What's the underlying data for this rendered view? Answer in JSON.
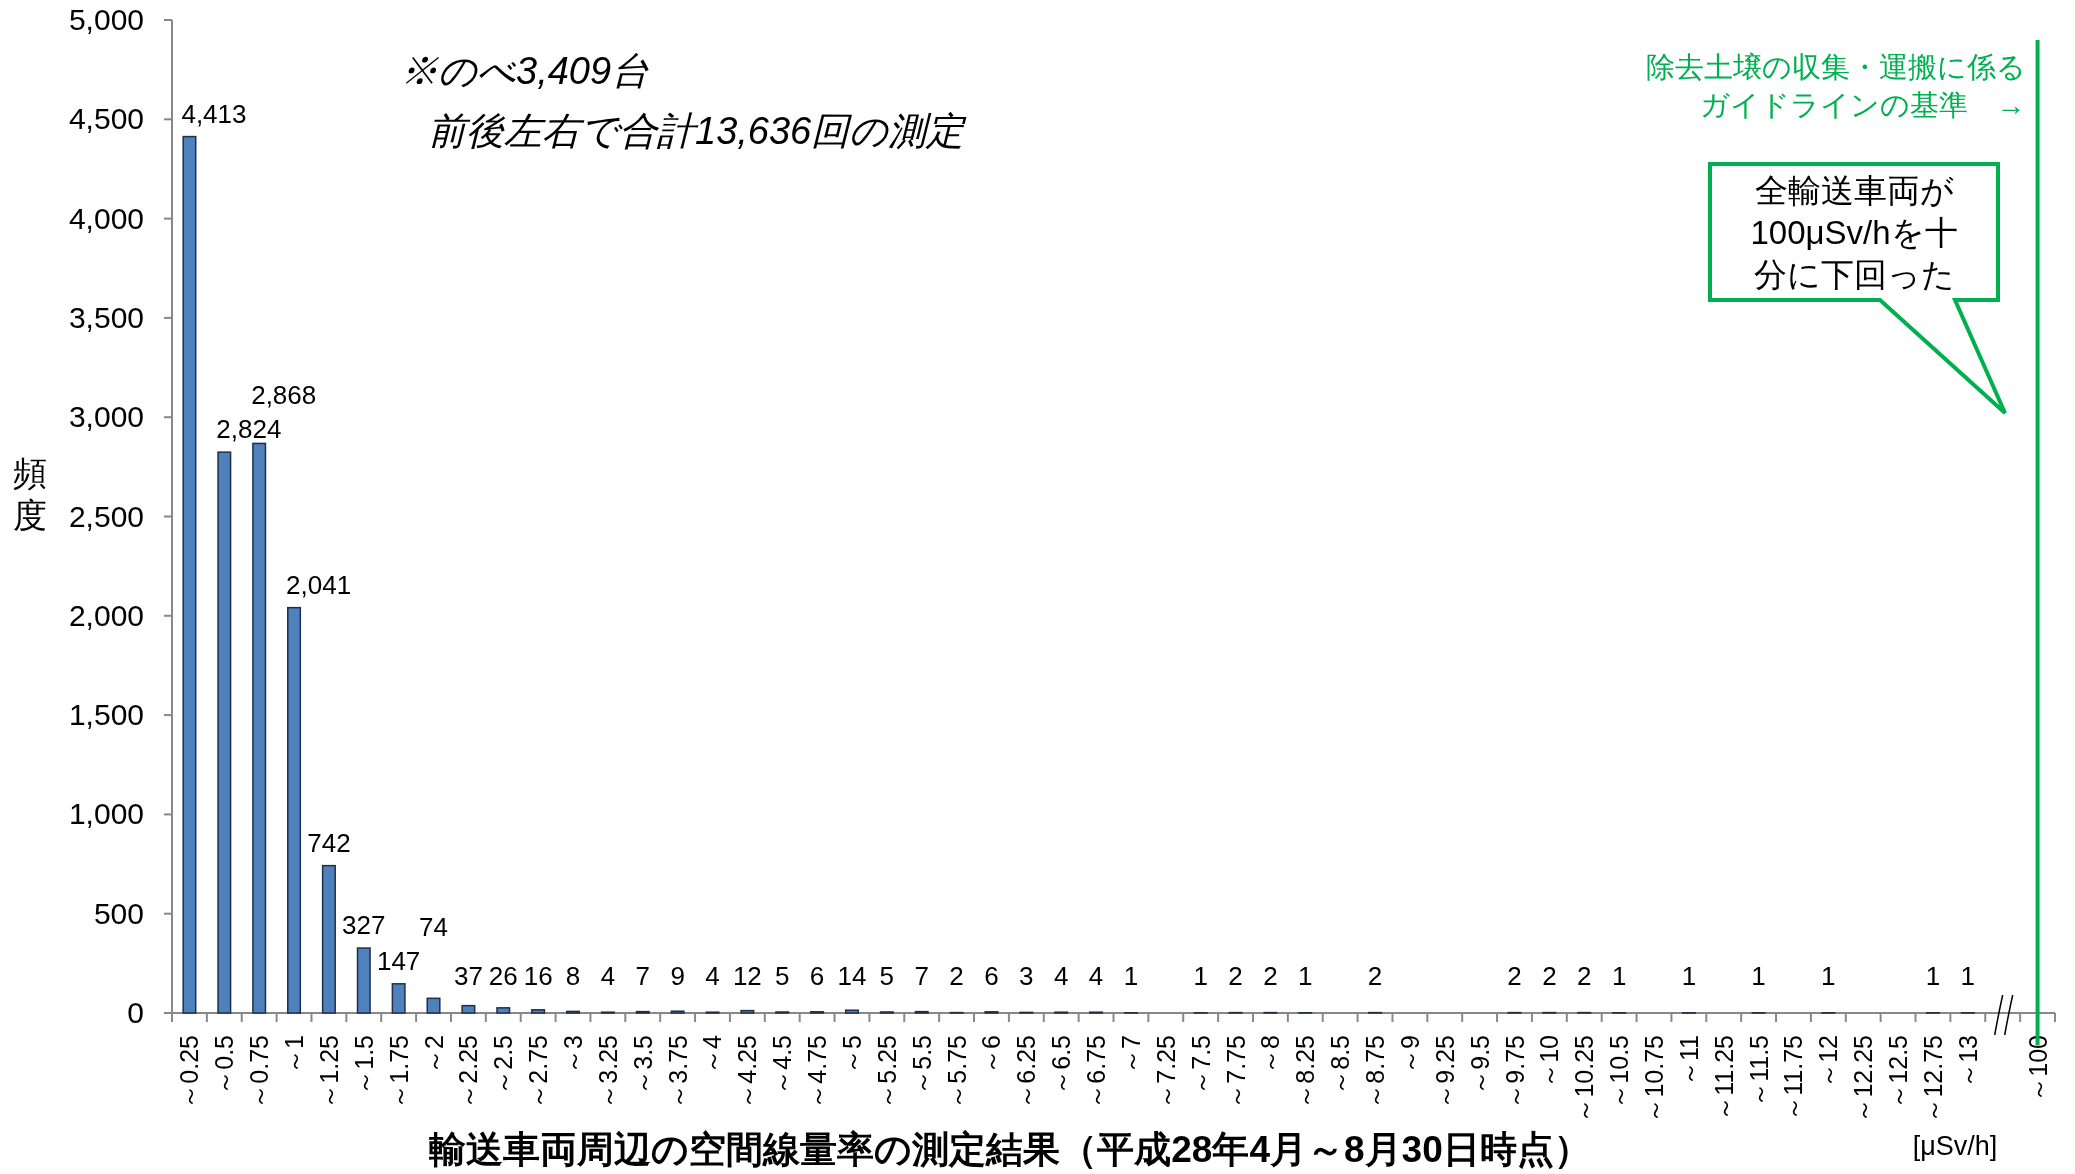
{
  "chart_data": {
    "type": "bar",
    "xlabel": "輸送車両周辺の空間線量率の測定結果（平成28年4月～8月30日時点）",
    "ylabel": "頻度",
    "categories": [
      "～0.25",
      "～0.5",
      "～0.75",
      "～1",
      "～1.25",
      "～1.5",
      "～1.75",
      "～2",
      "～2.25",
      "～2.5",
      "～2.75",
      "～3",
      "～3.25",
      "～3.5",
      "～3.75",
      "～4",
      "～4.25",
      "～4.5",
      "～4.75",
      "～5",
      "～5.25",
      "～5.5",
      "～5.75",
      "～6",
      "～6.25",
      "～6.5",
      "～6.75",
      "～7",
      "～7.25",
      "～7.5",
      "～7.75",
      "～8",
      "～8.25",
      "～8.5",
      "～8.75",
      "～9",
      "～9.25",
      "～9.5",
      "～9.75",
      "～10",
      "～10.25",
      "～10.5",
      "～10.75",
      "～11",
      "～11.25",
      "～11.5",
      "～11.75",
      "～12",
      "～12.25",
      "～12.5",
      "～12.75",
      "～13",
      null,
      "～100"
    ],
    "values": [
      4413,
      2824,
      2868,
      2041,
      742,
      327,
      147,
      74,
      37,
      26,
      16,
      8,
      4,
      7,
      9,
      4,
      12,
      5,
      6,
      14,
      5,
      7,
      2,
      6,
      3,
      4,
      4,
      1,
      0,
      1,
      2,
      2,
      1,
      0,
      2,
      0,
      0,
      0,
      2,
      2,
      2,
      1,
      0,
      1,
      0,
      1,
      0,
      1,
      0,
      0,
      1,
      1,
      null,
      0
    ],
    "value_labels": [
      "4,413",
      "2,824",
      "2,868",
      "2,041",
      "742",
      "327",
      "147",
      "74",
      "37",
      "26",
      "16",
      "8",
      "4",
      "7",
      "9",
      "4",
      "12",
      "5",
      "6",
      "14",
      "5",
      "7",
      "2",
      "6",
      "3",
      "4",
      "4",
      "1",
      null,
      "1",
      "2",
      "2",
      "1",
      null,
      "2",
      null,
      null,
      null,
      "2",
      "2",
      "2",
      "1",
      null,
      "1",
      null,
      "1",
      null,
      "1",
      null,
      null,
      "1",
      "1",
      null,
      null
    ],
    "color": "#4f81bd",
    "ylim": [
      0,
      5000
    ],
    "yticks": [
      {
        "value": 0,
        "label": "0"
      },
      {
        "value": 500,
        "label": "500"
      },
      {
        "value": 1000,
        "label": "1,000"
      },
      {
        "value": 1500,
        "label": "1,500"
      },
      {
        "value": 2000,
        "label": "2,000"
      },
      {
        "value": 2500,
        "label": "2,500"
      },
      {
        "value": 3000,
        "label": "3,000"
      },
      {
        "value": 3500,
        "label": "3,500"
      },
      {
        "value": 4000,
        "label": "4,000"
      },
      {
        "value": 4500,
        "label": "4,500"
      },
      {
        "value": 5000,
        "label": "5,000"
      }
    ],
    "ref_lines": [
      {
        "axis": "x",
        "value": "～100",
        "label": "除去土壌の収集・運搬に係るガイドラインの基準　→",
        "color": "#00b050"
      }
    ],
    "annotations": [
      "※のべ3,409台",
      "前後左右で合計13,636回の測定",
      "全輸送車両が100μSv/hを十分に下回った",
      "[μSv/h]"
    ]
  }
}
